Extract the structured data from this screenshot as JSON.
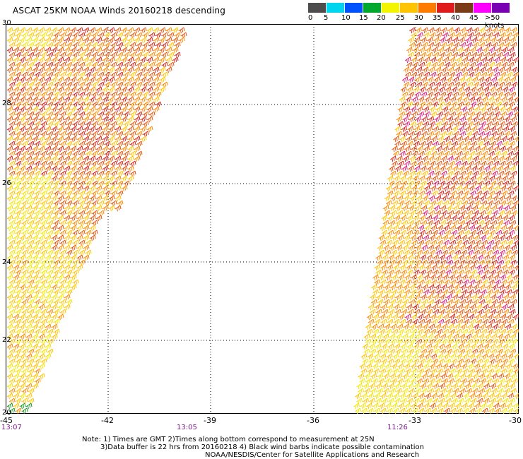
{
  "title": "ASCAT 25KM NOAA Winds 20160218 descending",
  "legend": {
    "colors": [
      "#4d4d4d",
      "#00d5f0",
      "#0052ff",
      "#00a92e",
      "#f3f500",
      "#ffc400",
      "#ff7b00",
      "#e01b1b",
      "#7a3b16",
      "#ff00ff",
      "#7a00b4"
    ],
    "ticks": [
      "0",
      "5",
      "10",
      "15",
      "20",
      "25",
      "30",
      "35",
      "40",
      "45",
      ">50 knots"
    ]
  },
  "axes": {
    "x_ticks": [
      "-45",
      "-42",
      "-39",
      "-36",
      "-33",
      "-30"
    ],
    "y_ticks": [
      "30",
      "28",
      "26",
      "24",
      "22",
      "20"
    ]
  },
  "times": [
    "13:07",
    "13:05",
    "11:26"
  ],
  "notes": [
    "Note: 1) Times are GMT 2)Times along bottom correspond to measurement at 25N",
    "3)Data buffer is 22 hrs from 20160218 4) Black wind barbs indicate possible contamination",
    "NOAA/NESDIS/Center for Satellite Applications and Research"
  ]
}
